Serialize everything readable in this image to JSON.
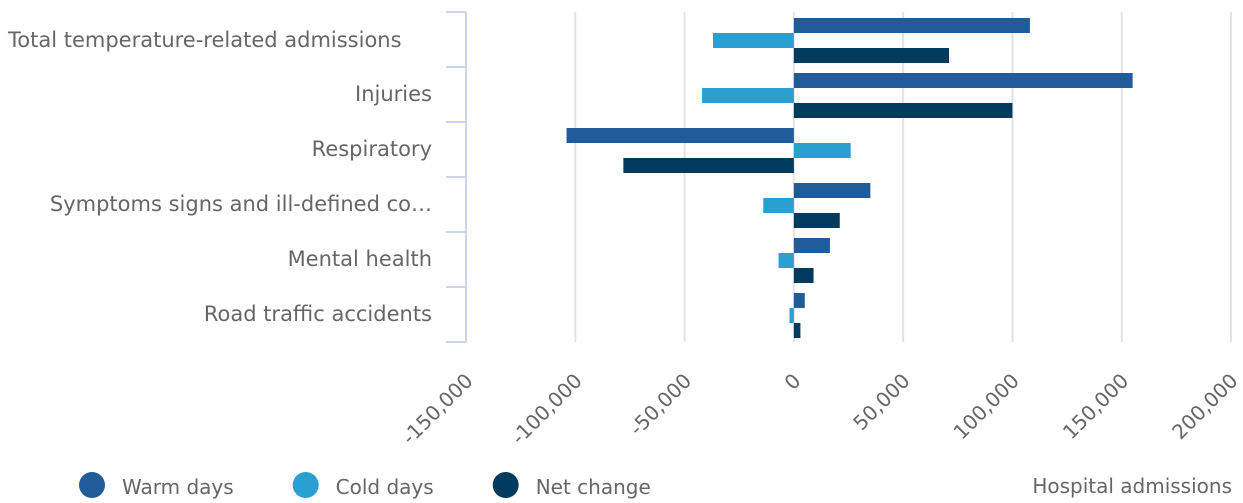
{
  "chart_data": {
    "type": "hbar",
    "x_label": "Hospital admissions",
    "categories": [
      "Total temperature-related admissions",
      "Injuries",
      "Respiratory",
      "Symptoms signs and ill-defined co…",
      "Mental health",
      "Road traffic accidents"
    ],
    "series": [
      {
        "name": "Warm days",
        "color": "#1f5c99",
        "values": [
          108000,
          155000,
          -104000,
          35000,
          16500,
          5000
        ]
      },
      {
        "name": "Cold days",
        "color": "#2aa0d0",
        "values": [
          -37000,
          -42000,
          26000,
          -14000,
          -7000,
          -2000
        ]
      },
      {
        "name": "Net change",
        "color": "#003a5c",
        "values": [
          71000,
          100000,
          -78000,
          21000,
          9000,
          3000
        ]
      }
    ],
    "xlim": [
      -150000,
      200000
    ],
    "xticks": [
      {
        "value": -150000,
        "label": "-150,000"
      },
      {
        "value": -100000,
        "label": "-100,000"
      },
      {
        "value": -50000,
        "label": "-50,000"
      },
      0,
      {
        "value": 50000,
        "label": "50,000"
      },
      {
        "value": 100000,
        "label": "100,000"
      },
      {
        "value": 150000,
        "label": "150,000"
      },
      {
        "value": 200000,
        "label": "200,000"
      }
    ],
    "grid": true
  }
}
